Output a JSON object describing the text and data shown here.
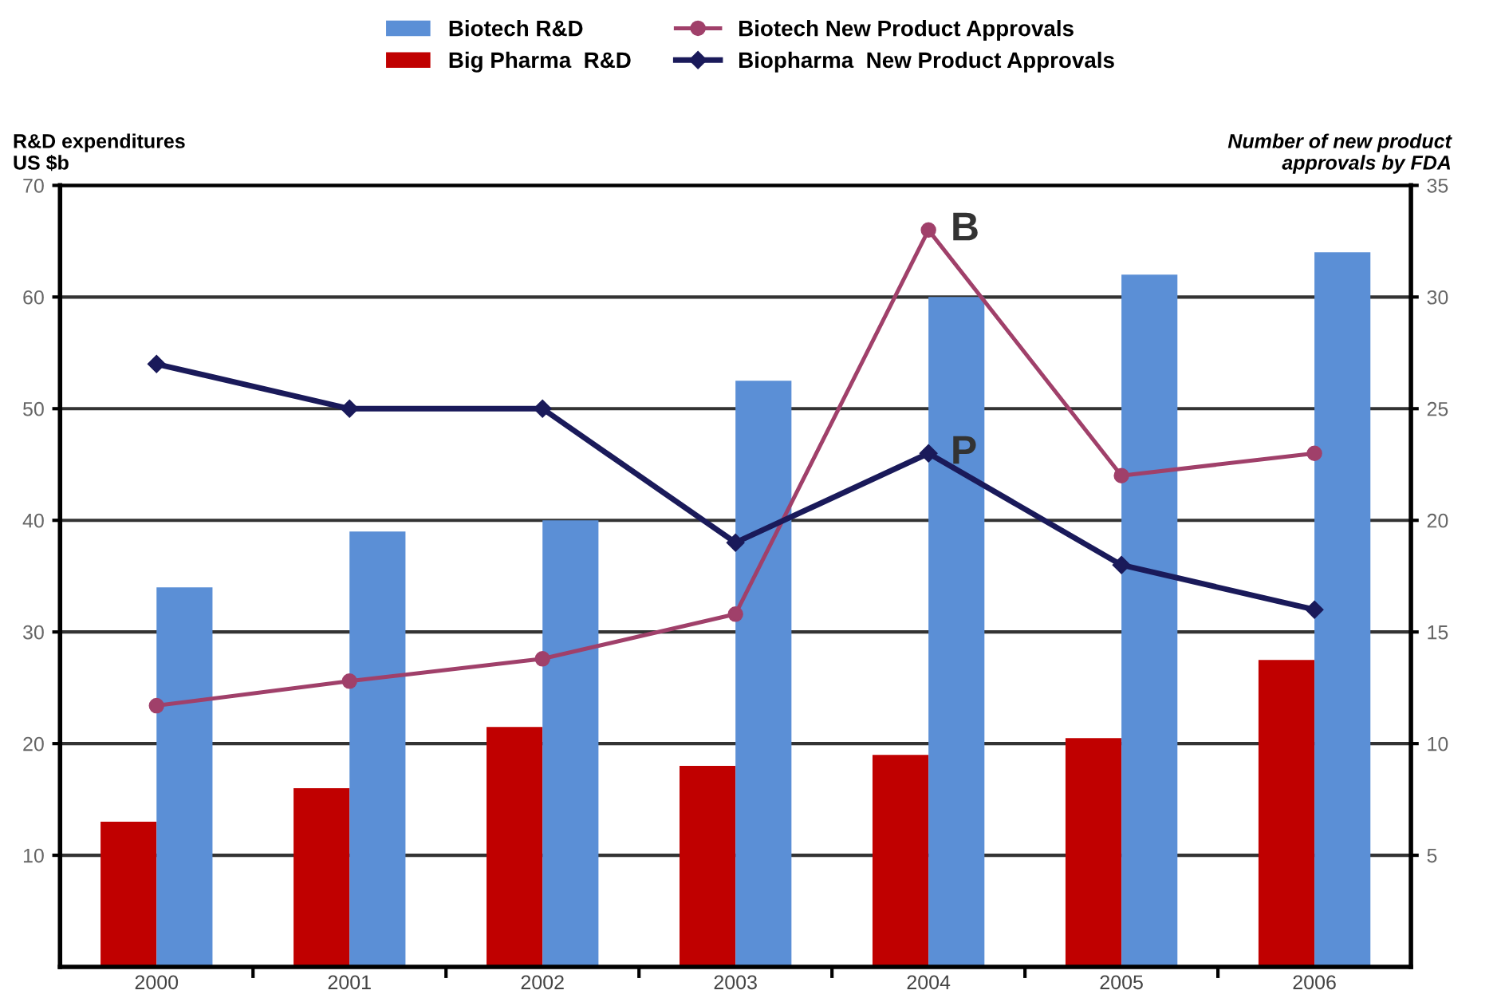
{
  "chart_data": {
    "type": "bar",
    "categories": [
      "2000",
      "2001",
      "2002",
      "2003",
      "2004",
      "2005",
      "2006"
    ],
    "ylabel": "R&D expenditures\nUS $b",
    "y2label": "Number of new product\napprovals by FDA",
    "ylim": [
      0,
      70
    ],
    "yticks": [
      10,
      20,
      30,
      40,
      50,
      60,
      70
    ],
    "y2lim": [
      0,
      35
    ],
    "y2ticks": [
      5,
      10,
      15,
      20,
      25,
      30,
      35
    ],
    "grid": "y",
    "legend": "top",
    "series": [
      {
        "name": "Big Pharma  R&D",
        "color": "#c00000",
        "values": [
          13,
          16,
          21.5,
          18,
          19,
          20.5,
          27.5
        ]
      },
      {
        "name": "Biotech R&D",
        "color": "#5b8fd6",
        "values": [
          34,
          39,
          40,
          52.5,
          60,
          62,
          64
        ]
      },
      {
        "name": "Biotech New Product Approvals",
        "type": "line",
        "axis": "y2",
        "marker": "circle",
        "color": "#a0406a",
        "values": [
          11.7,
          12.8,
          13.8,
          15.8,
          33,
          22,
          23
        ]
      },
      {
        "name": "Biopharma  New Product Approvals",
        "type": "line",
        "axis": "y2",
        "marker": "diamond",
        "color": "#1a1a5a",
        "values": [
          27,
          25,
          25,
          19,
          23,
          18,
          16
        ]
      }
    ],
    "annotations": [
      {
        "text": "B",
        "x": "2004",
        "y": 66
      },
      {
        "text": "P",
        "x": "2004",
        "y": 46
      }
    ]
  }
}
